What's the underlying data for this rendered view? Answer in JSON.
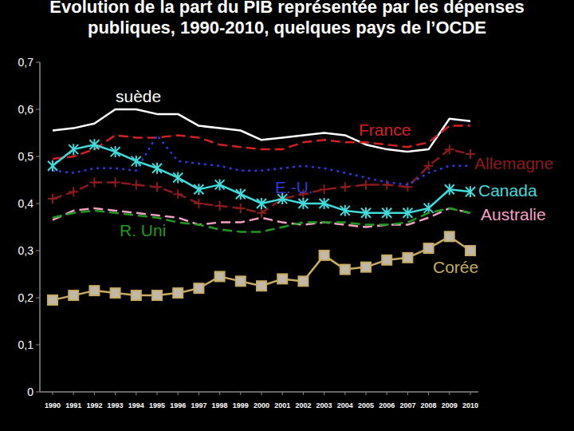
{
  "chart_data": {
    "type": "line",
    "title": "Evolution de la part du PIB représentée par les dépenses publiques, 1990-2010, quelques pays de l’OCDE",
    "categories": [
      "1990",
      "1991",
      "1992",
      "1993",
      "1994",
      "1995",
      "1996",
      "1997",
      "1998",
      "1999",
      "2000",
      "2001",
      "2002",
      "2003",
      "2004",
      "2005",
      "2006",
      "2007",
      "2008",
      "2009",
      "2010"
    ],
    "ylim": [
      0,
      0.7
    ],
    "yticks": [
      0,
      {
        "value": 0.1,
        "label": "0,1"
      },
      {
        "value": 0.2,
        "label": "0,2"
      },
      {
        "value": 0.3,
        "label": "0,3"
      },
      {
        "value": 0.4,
        "label": "0,4"
      },
      {
        "value": 0.5,
        "label": "0,5"
      },
      {
        "value": 0.6,
        "label": "0,6"
      },
      {
        "value": 0.7,
        "label": "0,7"
      }
    ],
    "grid": false,
    "series": [
      {
        "name": "suède",
        "color": "#ffffff",
        "line_style": "solid",
        "marker": "none",
        "values": [
          0.555,
          0.56,
          0.57,
          0.6,
          0.6,
          0.59,
          0.59,
          0.565,
          0.56,
          0.555,
          0.535,
          0.54,
          0.545,
          0.55,
          0.545,
          0.525,
          0.515,
          0.51,
          0.515,
          0.58,
          0.575
        ]
      },
      {
        "name": "France",
        "color": "#d42020",
        "line_style": "dashed",
        "marker": "none",
        "values": [
          0.495,
          0.5,
          0.515,
          0.545,
          0.54,
          0.54,
          0.545,
          0.54,
          0.525,
          0.52,
          0.515,
          0.515,
          0.53,
          0.535,
          0.53,
          0.53,
          0.525,
          0.52,
          0.53,
          0.565,
          0.565
        ]
      },
      {
        "name": "Allemagne",
        "color": "#8b1a1a",
        "line_style": "dashed",
        "marker": "plus",
        "values": [
          0.41,
          0.425,
          0.445,
          0.445,
          0.44,
          0.435,
          0.42,
          0.4,
          0.395,
          0.39,
          0.38,
          0.41,
          0.42,
          0.43,
          0.435,
          0.44,
          0.44,
          0.435,
          0.48,
          0.515,
          0.505
        ]
      },
      {
        "name": "E.-U.",
        "color": "#2a3bd8",
        "line_style": "dotted",
        "marker": "none",
        "values": [
          0.47,
          0.465,
          0.475,
          0.475,
          0.47,
          0.545,
          0.49,
          0.485,
          0.48,
          0.47,
          0.47,
          0.475,
          0.48,
          0.475,
          0.465,
          0.455,
          0.445,
          0.44,
          0.465,
          0.48,
          0.48
        ]
      },
      {
        "name": "Canada",
        "color": "#40dcdc",
        "line_style": "solid",
        "marker": "asterisk",
        "values": [
          0.48,
          0.515,
          0.525,
          0.51,
          0.49,
          0.475,
          0.455,
          0.43,
          0.44,
          0.42,
          0.4,
          0.41,
          0.4,
          0.4,
          0.385,
          0.38,
          0.38,
          0.38,
          0.39,
          0.43,
          0.425
        ]
      },
      {
        "name": "Australie",
        "color": "#f4a0c4",
        "line_style": "dashed",
        "marker": "none",
        "values": [
          0.365,
          0.385,
          0.39,
          0.385,
          0.38,
          0.375,
          0.37,
          0.355,
          0.36,
          0.36,
          0.37,
          0.36,
          0.355,
          0.36,
          0.355,
          0.35,
          0.355,
          0.355,
          0.37,
          0.39,
          0.38
        ]
      },
      {
        "name": "R. Uni",
        "color": "#1f9a1f",
        "line_style": "dashed",
        "marker": "none",
        "values": [
          0.37,
          0.38,
          0.385,
          0.38,
          0.375,
          0.37,
          0.36,
          0.355,
          0.345,
          0.34,
          0.34,
          0.35,
          0.36,
          0.36,
          0.36,
          0.355,
          0.355,
          0.36,
          0.38,
          0.39,
          0.38
        ]
      },
      {
        "name": "Corée",
        "color": "#c8ac62",
        "line_style": "solid",
        "marker": "square",
        "values": [
          0.195,
          0.205,
          0.215,
          0.21,
          0.205,
          0.205,
          0.21,
          0.22,
          0.245,
          0.235,
          0.225,
          0.24,
          0.235,
          0.29,
          0.26,
          0.265,
          0.28,
          0.285,
          0.305,
          0.33,
          0.3
        ]
      }
    ]
  }
}
